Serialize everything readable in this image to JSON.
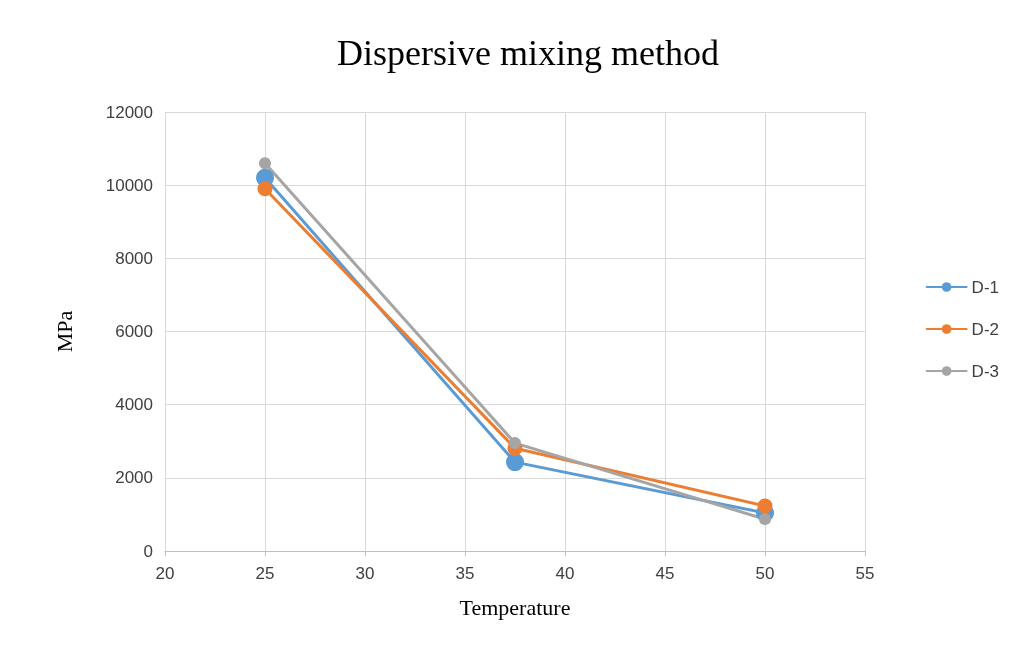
{
  "chart_data": {
    "type": "line",
    "title": "Dispersive mixing method",
    "xlabel": "Temperature",
    "ylabel": "MPa",
    "x": [
      25,
      37.5,
      50
    ],
    "series": [
      {
        "name": "D-1",
        "color": "#5b9bd5",
        "values": [
          10200,
          2430,
          1040
        ]
      },
      {
        "name": "D-2",
        "color": "#ed7d31",
        "values": [
          9900,
          2810,
          1230
        ]
      },
      {
        "name": "D-3",
        "color": "#a5a5a5",
        "values": [
          10600,
          2950,
          870
        ]
      }
    ],
    "xlim": [
      20,
      55
    ],
    "xticks": [
      20,
      25,
      30,
      35,
      40,
      45,
      50,
      55
    ],
    "ylim": [
      0,
      12000
    ],
    "yticks": [
      0,
      2000,
      4000,
      6000,
      8000,
      10000,
      12000
    ],
    "grid": true,
    "legend": "right",
    "marker": "circle",
    "line_style": "solid"
  }
}
